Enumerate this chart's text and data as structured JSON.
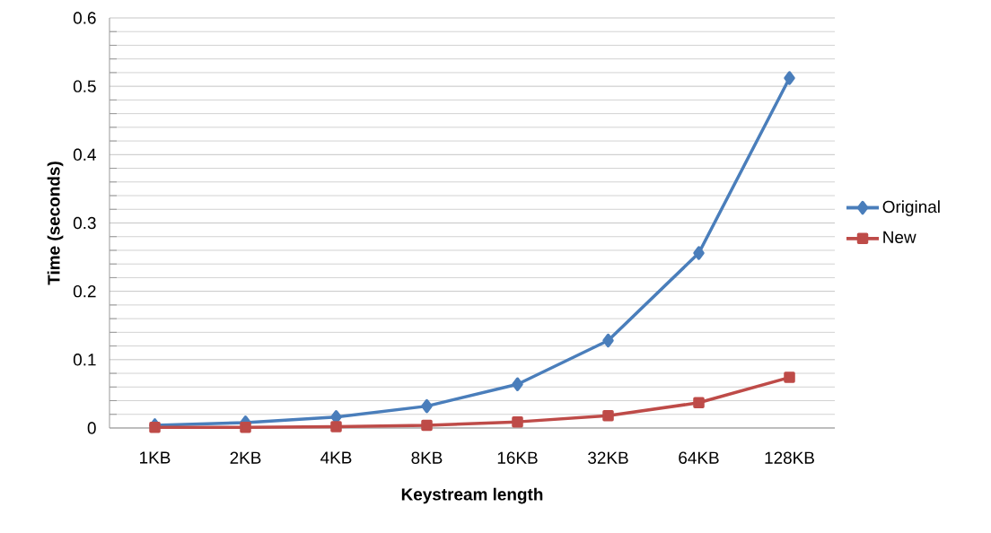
{
  "chart_data": {
    "type": "line",
    "xlabel": "Keystream length",
    "ylabel": "Time (seconds)",
    "categories": [
      "1KB",
      "2KB",
      "4KB",
      "8KB",
      "16KB",
      "32KB",
      "64KB",
      "128KB"
    ],
    "series": [
      {
        "name": "Original",
        "color": "#4a7ebb",
        "marker": "diamond",
        "values": [
          0.004,
          0.008,
          0.016,
          0.032,
          0.064,
          0.128,
          0.256,
          0.512
        ]
      },
      {
        "name": "New",
        "color": "#be4b48",
        "marker": "square",
        "values": [
          0.001,
          0.001,
          0.002,
          0.004,
          0.009,
          0.018,
          0.037,
          0.074
        ]
      }
    ],
    "ylim": [
      0,
      0.6
    ],
    "yticks": [
      0,
      0.1,
      0.2,
      0.3,
      0.4,
      0.5,
      0.6
    ],
    "grid": "y",
    "legend": "right",
    "line_style": "solid"
  }
}
